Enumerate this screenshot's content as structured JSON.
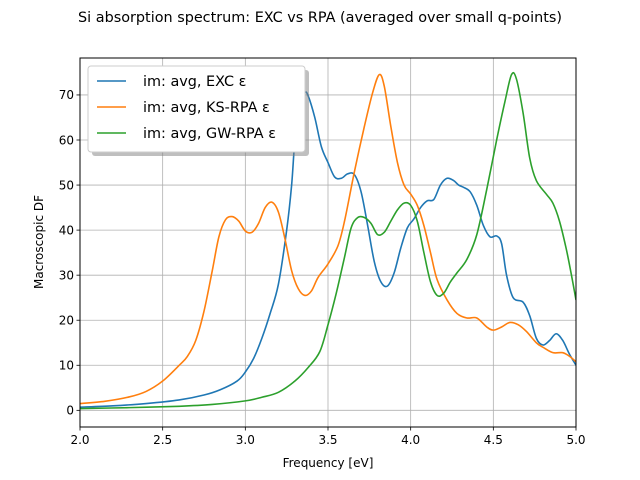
{
  "chart_data": {
    "type": "line",
    "title": "Si absorption spectrum: EXC vs RPA (averaged over small q-points)",
    "xlabel": "Frequency [eV]",
    "ylabel": "Macroscopic DF",
    "xlim": [
      2.0,
      5.0
    ],
    "ylim": [
      -3.7,
      78.2
    ],
    "xticks": [
      2.0,
      2.5,
      3.0,
      3.5,
      4.0,
      4.5,
      5.0
    ],
    "xtick_labels": [
      "2.0",
      "2.5",
      "3.0",
      "3.5",
      "4.0",
      "4.5",
      "5.0"
    ],
    "yticks": [
      0,
      10,
      20,
      30,
      40,
      50,
      60,
      70
    ],
    "ytick_labels": [
      "0",
      "10",
      "20",
      "30",
      "40",
      "50",
      "60",
      "70"
    ],
    "grid": true,
    "legend_position": "top-left",
    "series": [
      {
        "name": "im: avg, EXC ε",
        "color": "#1f77b4",
        "points": [
          [
            2.0,
            0.7
          ],
          [
            2.2,
            1.0
          ],
          [
            2.4,
            1.5
          ],
          [
            2.6,
            2.3
          ],
          [
            2.75,
            3.4
          ],
          [
            2.85,
            4.6
          ],
          [
            2.95,
            6.5
          ],
          [
            3.0,
            8.5
          ],
          [
            3.05,
            11.5
          ],
          [
            3.1,
            16.0
          ],
          [
            3.15,
            21.5
          ],
          [
            3.2,
            28.0
          ],
          [
            3.25,
            40.0
          ],
          [
            3.28,
            50.0
          ],
          [
            3.3,
            60.0
          ],
          [
            3.33,
            68.0
          ],
          [
            3.36,
            70.5
          ],
          [
            3.38,
            69.8
          ],
          [
            3.42,
            65.0
          ],
          [
            3.46,
            58.5
          ],
          [
            3.5,
            55.0
          ],
          [
            3.54,
            51.8
          ],
          [
            3.58,
            51.5
          ],
          [
            3.62,
            52.5
          ],
          [
            3.66,
            52.3
          ],
          [
            3.7,
            48.5
          ],
          [
            3.74,
            41.0
          ],
          [
            3.78,
            33.0
          ],
          [
            3.82,
            28.5
          ],
          [
            3.86,
            27.6
          ],
          [
            3.9,
            30.5
          ],
          [
            3.94,
            36.0
          ],
          [
            3.98,
            40.5
          ],
          [
            4.02,
            42.5
          ],
          [
            4.06,
            45.0
          ],
          [
            4.1,
            46.5
          ],
          [
            4.14,
            46.8
          ],
          [
            4.18,
            50.0
          ],
          [
            4.22,
            51.5
          ],
          [
            4.26,
            51.0
          ],
          [
            4.29,
            50.0
          ],
          [
            4.32,
            49.5
          ],
          [
            4.36,
            48.5
          ],
          [
            4.4,
            45.5
          ],
          [
            4.44,
            41.0
          ],
          [
            4.48,
            38.5
          ],
          [
            4.52,
            38.7
          ],
          [
            4.55,
            37.0
          ],
          [
            4.58,
            30.0
          ],
          [
            4.62,
            25.0
          ],
          [
            4.68,
            24.0
          ],
          [
            4.72,
            21.0
          ],
          [
            4.76,
            16.0
          ],
          [
            4.8,
            14.5
          ],
          [
            4.84,
            15.5
          ],
          [
            4.88,
            17.0
          ],
          [
            4.92,
            15.5
          ],
          [
            4.96,
            12.5
          ],
          [
            5.0,
            10.0
          ]
        ]
      },
      {
        "name": "im: avg, KS-RPA ε",
        "color": "#ff7f0e",
        "points": [
          [
            2.0,
            1.5
          ],
          [
            2.15,
            2.0
          ],
          [
            2.3,
            3.0
          ],
          [
            2.4,
            4.2
          ],
          [
            2.5,
            6.5
          ],
          [
            2.6,
            10.0
          ],
          [
            2.65,
            12.0
          ],
          [
            2.7,
            15.5
          ],
          [
            2.75,
            22.0
          ],
          [
            2.8,
            31.0
          ],
          [
            2.84,
            38.5
          ],
          [
            2.88,
            42.3
          ],
          [
            2.92,
            43.0
          ],
          [
            2.96,
            42.0
          ],
          [
            3.0,
            39.8
          ],
          [
            3.04,
            39.5
          ],
          [
            3.08,
            41.5
          ],
          [
            3.12,
            45.0
          ],
          [
            3.16,
            46.2
          ],
          [
            3.2,
            44.0
          ],
          [
            3.24,
            38.0
          ],
          [
            3.28,
            31.0
          ],
          [
            3.32,
            27.0
          ],
          [
            3.36,
            25.5
          ],
          [
            3.4,
            26.5
          ],
          [
            3.44,
            29.5
          ],
          [
            3.5,
            32.5
          ],
          [
            3.56,
            36.5
          ],
          [
            3.6,
            42.0
          ],
          [
            3.66,
            53.0
          ],
          [
            3.72,
            63.0
          ],
          [
            3.77,
            70.5
          ],
          [
            3.81,
            74.5
          ],
          [
            3.84,
            72.0
          ],
          [
            3.88,
            63.0
          ],
          [
            3.92,
            55.0
          ],
          [
            3.96,
            50.0
          ],
          [
            4.0,
            48.0
          ],
          [
            4.04,
            45.5
          ],
          [
            4.08,
            41.0
          ],
          [
            4.12,
            35.0
          ],
          [
            4.16,
            29.0
          ],
          [
            4.22,
            24.5
          ],
          [
            4.28,
            21.5
          ],
          [
            4.34,
            20.5
          ],
          [
            4.4,
            20.5
          ],
          [
            4.46,
            18.5
          ],
          [
            4.5,
            17.8
          ],
          [
            4.55,
            18.5
          ],
          [
            4.6,
            19.5
          ],
          [
            4.65,
            19.0
          ],
          [
            4.7,
            17.5
          ],
          [
            4.76,
            15.0
          ],
          [
            4.8,
            14.0
          ],
          [
            4.86,
            12.8
          ],
          [
            4.92,
            12.8
          ],
          [
            4.96,
            12.0
          ],
          [
            5.0,
            10.8
          ]
        ]
      },
      {
        "name": "im: avg, GW-RPA ε",
        "color": "#2ca02c",
        "points": [
          [
            2.0,
            0.4
          ],
          [
            2.3,
            0.6
          ],
          [
            2.6,
            0.9
          ],
          [
            2.8,
            1.3
          ],
          [
            3.0,
            2.1
          ],
          [
            3.1,
            2.9
          ],
          [
            3.2,
            4.0
          ],
          [
            3.3,
            6.5
          ],
          [
            3.38,
            9.5
          ],
          [
            3.45,
            13.0
          ],
          [
            3.5,
            19.0
          ],
          [
            3.55,
            26.0
          ],
          [
            3.6,
            34.0
          ],
          [
            3.64,
            40.5
          ],
          [
            3.68,
            42.8
          ],
          [
            3.72,
            42.8
          ],
          [
            3.76,
            41.5
          ],
          [
            3.8,
            39.0
          ],
          [
            3.84,
            39.5
          ],
          [
            3.88,
            42.0
          ],
          [
            3.92,
            44.5
          ],
          [
            3.96,
            46.0
          ],
          [
            4.0,
            45.5
          ],
          [
            4.04,
            42.0
          ],
          [
            4.08,
            35.0
          ],
          [
            4.12,
            28.5
          ],
          [
            4.16,
            25.5
          ],
          [
            4.2,
            26.0
          ],
          [
            4.24,
            28.5
          ],
          [
            4.28,
            30.5
          ],
          [
            4.34,
            33.5
          ],
          [
            4.4,
            39.0
          ],
          [
            4.46,
            49.0
          ],
          [
            4.52,
            60.0
          ],
          [
            4.57,
            68.5
          ],
          [
            4.61,
            74.5
          ],
          [
            4.64,
            73.5
          ],
          [
            4.68,
            66.0
          ],
          [
            4.72,
            56.0
          ],
          [
            4.76,
            51.0
          ],
          [
            4.82,
            48.0
          ],
          [
            4.86,
            46.0
          ],
          [
            4.9,
            42.0
          ],
          [
            4.94,
            36.0
          ],
          [
            4.97,
            30.5
          ],
          [
            5.0,
            24.5
          ]
        ]
      }
    ]
  }
}
